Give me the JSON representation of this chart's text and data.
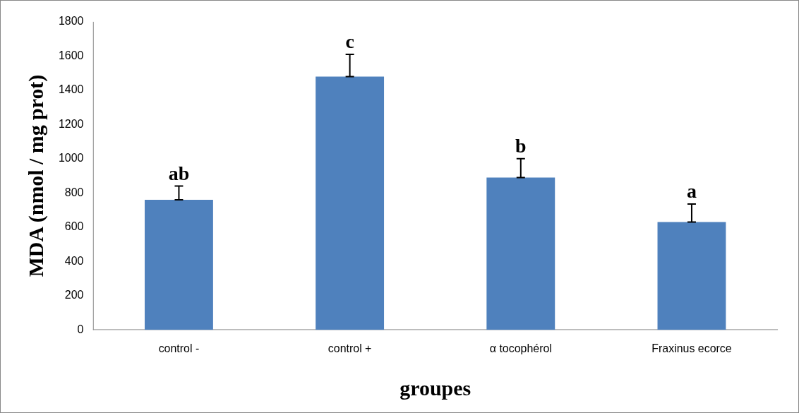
{
  "chart_data": {
    "type": "bar",
    "xlabel": "groupes",
    "ylabel": "MDA (nmol / mg prot)",
    "categories": [
      "control -",
      "control +",
      "α tocophérol",
      "Fraxinus ecorce"
    ],
    "values": [
      760,
      1480,
      890,
      630
    ],
    "color": "#4f81bd",
    "errors": [
      [
        760,
        840
      ],
      [
        1480,
        1610
      ],
      [
        890,
        1000
      ],
      [
        630,
        735
      ]
    ],
    "ylim": [
      0,
      1800
    ],
    "yticks": [
      0,
      200,
      400,
      600,
      800,
      1000,
      1200,
      1400,
      1600,
      1800
    ],
    "grid": false,
    "legend": false,
    "annotations": [
      {
        "text": "ab",
        "x": "control -",
        "y": 840
      },
      {
        "text": "c",
        "x": "control +",
        "y": 1610
      },
      {
        "text": "b",
        "x": "α tocophérol",
        "y": 1000
      },
      {
        "text": "a",
        "x": "Fraxinus ecorce",
        "y": 735
      }
    ]
  }
}
